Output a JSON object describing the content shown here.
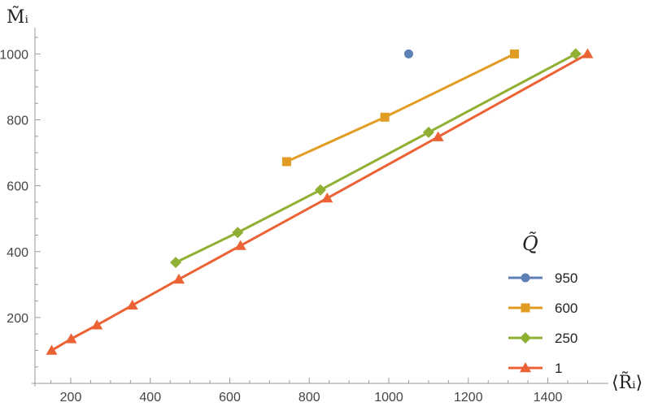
{
  "chart_data": {
    "type": "line",
    "title": "",
    "xlabel": "⟨R̃ᵢ⟩",
    "ylabel": "M̃ᵢ",
    "xlim": [
      110,
      1540
    ],
    "ylim": [
      0,
      1070
    ],
    "x_ticks": [
      200,
      400,
      600,
      800,
      1000,
      1200,
      1400
    ],
    "y_ticks": [
      200,
      400,
      600,
      800,
      1000
    ],
    "x_tick_labels": [
      "200",
      "400",
      "600",
      "800",
      "1000",
      "1200",
      "1400"
    ],
    "y_tick_labels": [
      "200",
      "400",
      "600",
      "800",
      "1000"
    ],
    "grid": false,
    "legend": {
      "title": "Q̃",
      "placement": "right"
    },
    "series": [
      {
        "name": "950",
        "color": "#5e81b5",
        "marker": "circle",
        "points": [
          [
            1050,
            1000
          ]
        ]
      },
      {
        "name": "600",
        "color": "#e19c24",
        "marker": "square",
        "points": [
          [
            743,
            673
          ],
          [
            990,
            808
          ],
          [
            1316,
            1000
          ]
        ]
      },
      {
        "name": "250",
        "color": "#8fb032",
        "marker": "diamond",
        "points": [
          [
            464,
            367
          ],
          [
            620,
            458
          ],
          [
            828,
            587
          ],
          [
            1100,
            762
          ],
          [
            1470,
            1000
          ]
        ]
      },
      {
        "name": "1",
        "color": "#eb6235",
        "marker": "triangle",
        "points": [
          [
            152,
            100
          ],
          [
            201,
            135
          ],
          [
            266,
            177
          ],
          [
            355,
            237
          ],
          [
            472,
            316
          ],
          [
            627,
            418
          ],
          [
            845,
            562
          ],
          [
            1124,
            748
          ],
          [
            1500,
            1000
          ]
        ]
      }
    ]
  }
}
